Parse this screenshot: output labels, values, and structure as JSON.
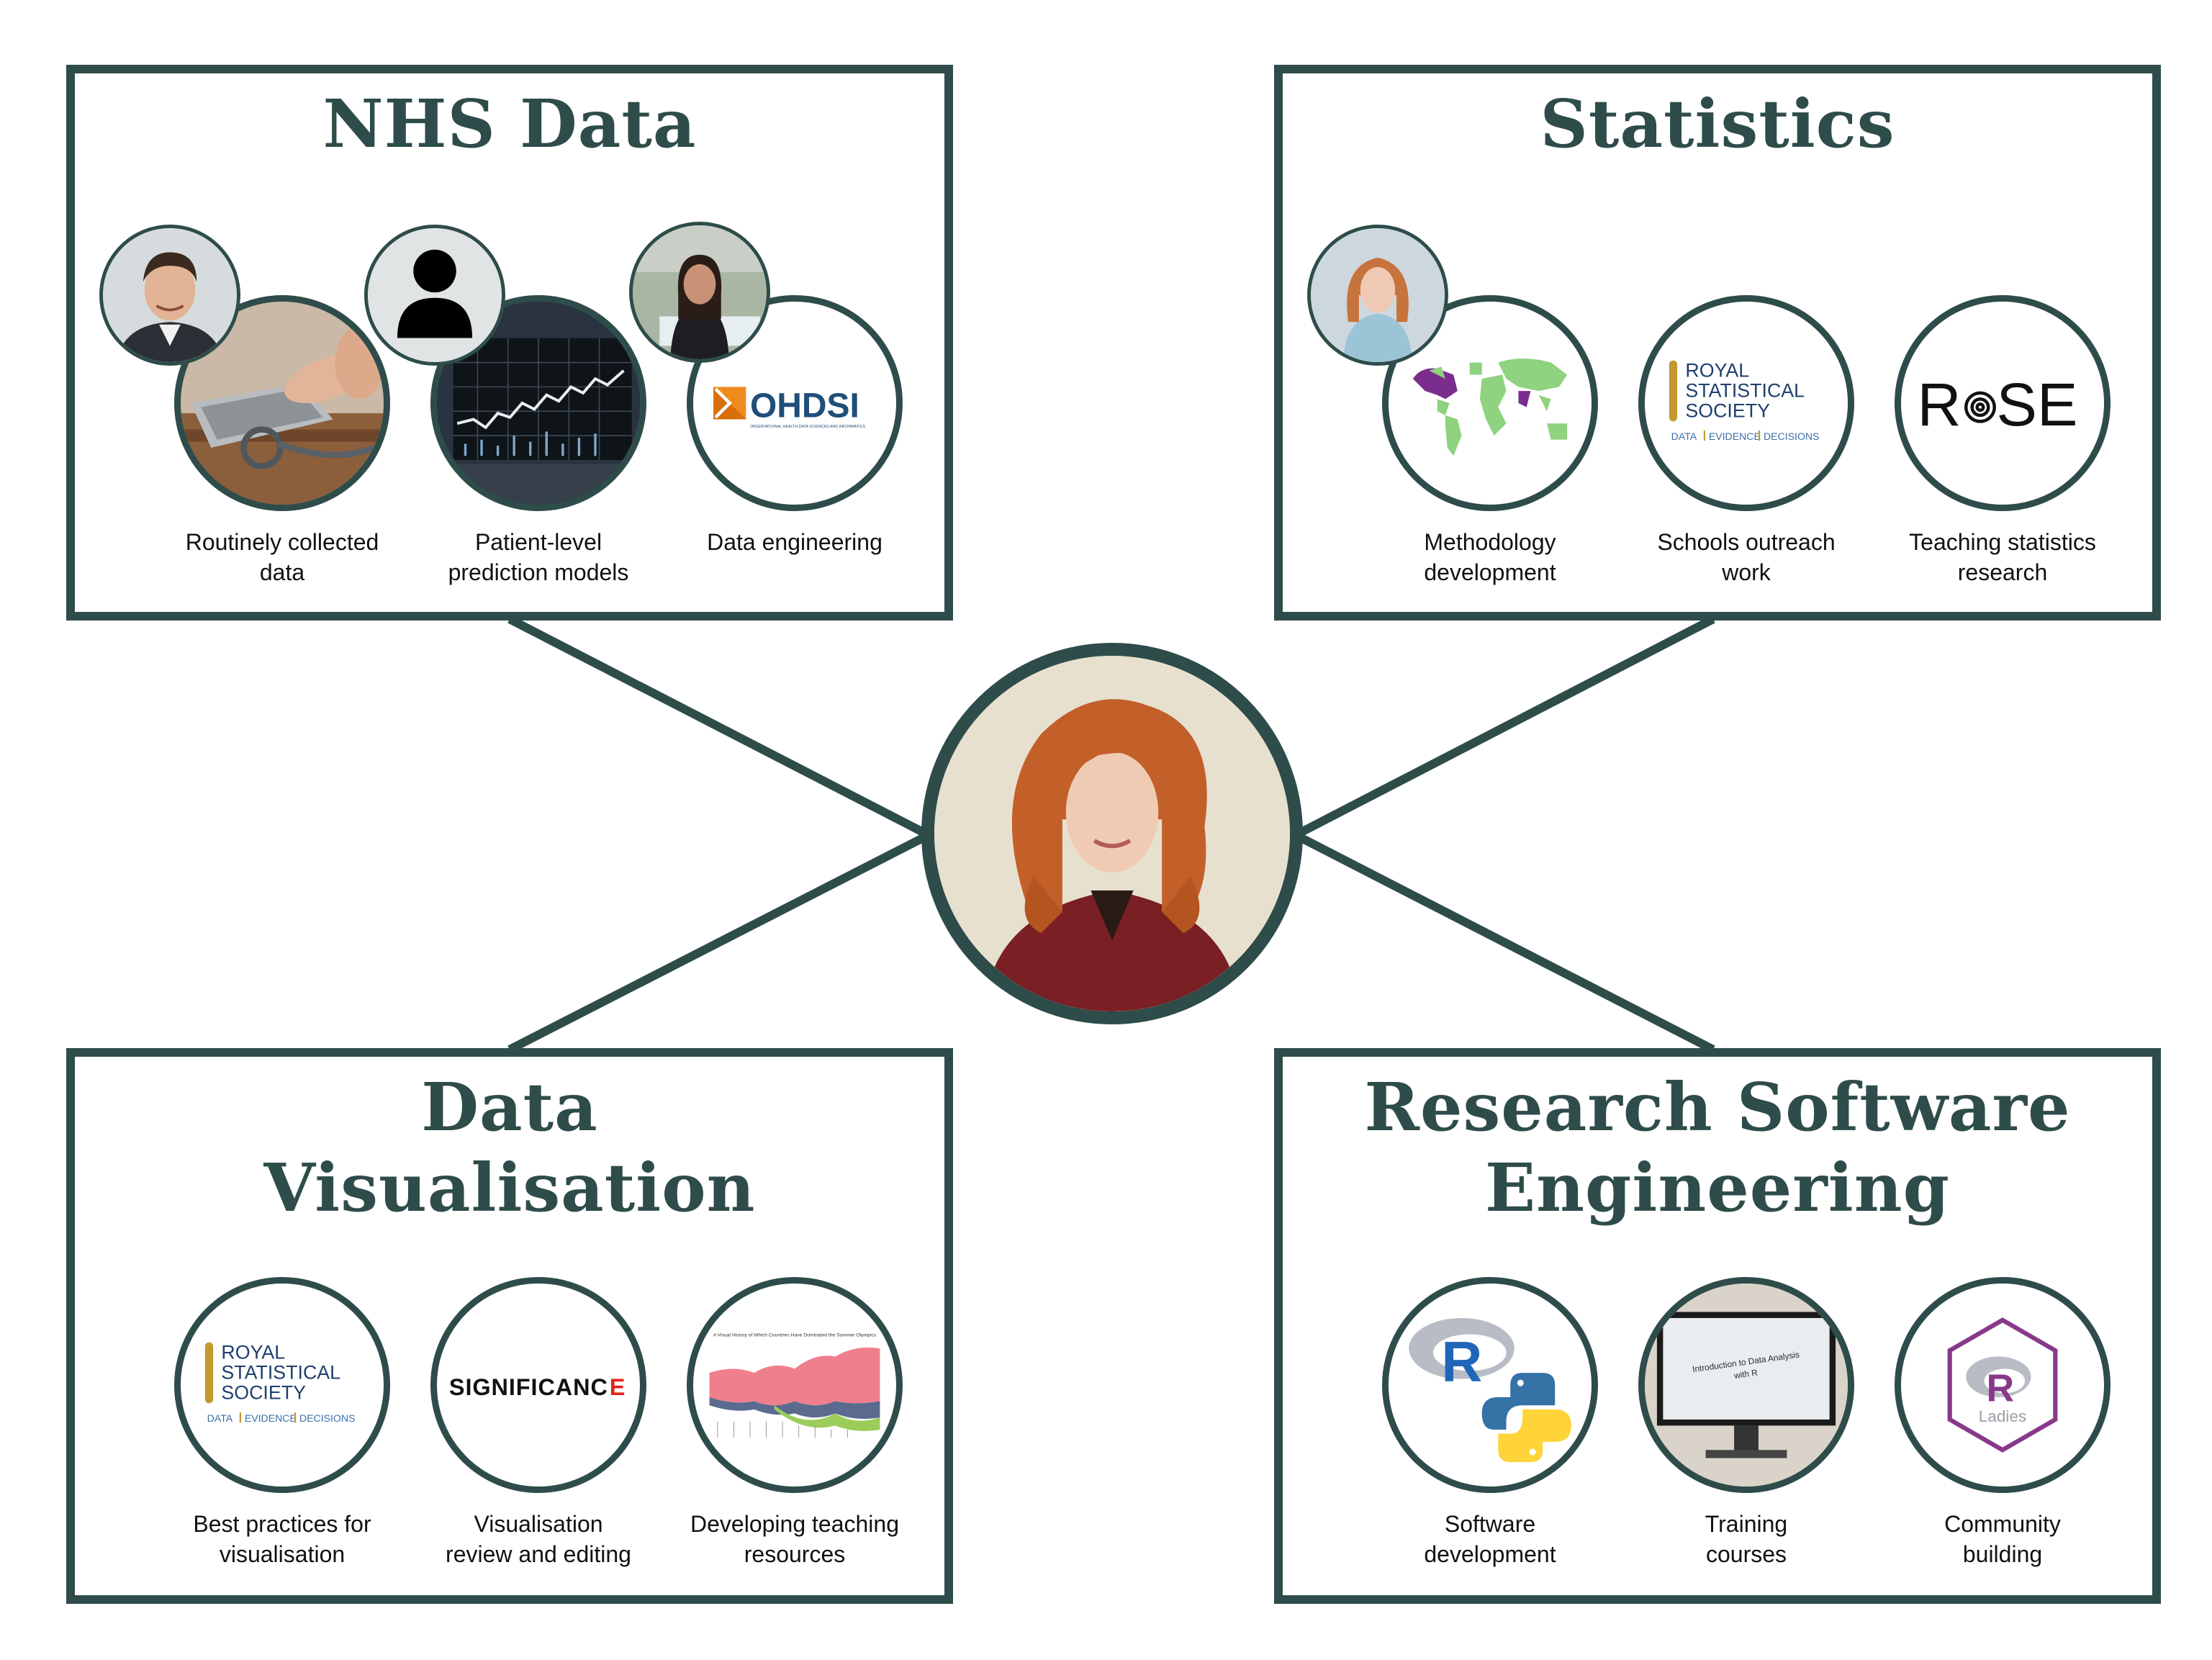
{
  "colors": {
    "frame": "#2e4c4a",
    "rss_gold": "#c29a2f",
    "rss_blue": "#1f3f6e",
    "ohdsi_orange": "#f08a1d",
    "ohdsi_blue": "#1f4e79",
    "significance_red": "#e2231a",
    "r_blue": "#2066b8",
    "python_blue": "#3572a5",
    "python_yellow": "#ffd43b",
    "rladies_purple": "#88398a"
  },
  "panels": {
    "nhs": {
      "title": "NHS Data",
      "items": [
        {
          "caption_line1": "Routinely collected",
          "caption_line2": "data",
          "icon": "laptop-stethoscope-photo"
        },
        {
          "caption_line1": "Patient-level",
          "caption_line2": "prediction models",
          "icon": "monitor-chart-photo"
        },
        {
          "caption_line1": "Data engineering",
          "caption_line2": "",
          "icon": "ohdsi-logo"
        }
      ]
    },
    "statistics": {
      "title": "Statistics",
      "items": [
        {
          "caption_line1": "Methodology",
          "caption_line2": "development",
          "icon": "world-map"
        },
        {
          "caption_line1": "Schools outreach",
          "caption_line2": "work",
          "icon": "rss-logo"
        },
        {
          "caption_line1": "Teaching statistics",
          "caption_line2": "research",
          "icon": "rose-logo"
        }
      ]
    },
    "dataviz": {
      "title_line1": "Data",
      "title_line2": "Visualisation",
      "items": [
        {
          "caption_line1": "Best practices for",
          "caption_line2": "visualisation",
          "icon": "rss-logo"
        },
        {
          "caption_line1": "Visualisation",
          "caption_line2": "review and editing",
          "icon": "significance-logo"
        },
        {
          "caption_line1": "Developing teaching",
          "caption_line2": "resources",
          "icon": "stream-chart-thumbnail"
        }
      ]
    },
    "rse": {
      "title_line1": "Research Software",
      "title_line2": "Engineering",
      "items": [
        {
          "caption_line1": "Software",
          "caption_line2": "development",
          "icon": "r-python-logo"
        },
        {
          "caption_line1": "Training",
          "caption_line2": "courses",
          "icon": "presentation-screen-photo"
        },
        {
          "caption_line1": "Community",
          "caption_line2": "building",
          "icon": "rladies-logo"
        }
      ]
    }
  },
  "logos": {
    "ohdsi": {
      "name": "OHDSI",
      "tagline": "OBSERVATIONAL HEALTH DATA SCIENCES AND INFORMATICS"
    },
    "rss": {
      "line1": "ROYAL",
      "line2": "STATISTICAL",
      "line3": "SOCIETY",
      "tag1": "DATA",
      "tag2": "EVIDENCE",
      "tag3": "DECISIONS"
    },
    "rose": {
      "left": "R",
      "right": "SE"
    },
    "significance": {
      "name": "SIGNIFICANC",
      "last_letter": "E"
    },
    "r": "R",
    "rladies": {
      "letter": "R",
      "word": "Ladies"
    },
    "presentation": {
      "line1": "Introduction to Data Analysis",
      "line2": "with R"
    },
    "stream_chart": {
      "title": "A Visual History of Which Countries Have Dominated the Summer Olympics"
    }
  }
}
